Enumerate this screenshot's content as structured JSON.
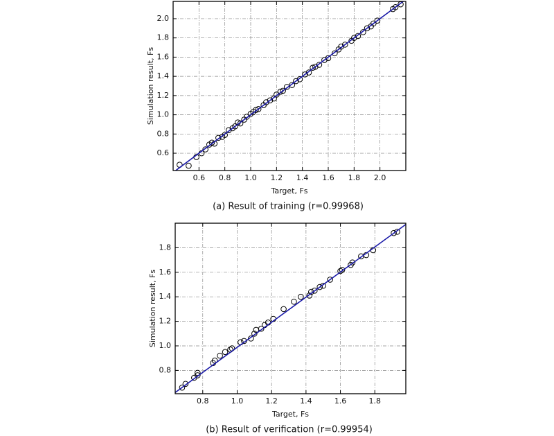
{
  "chart_data": [
    {
      "type": "scatter",
      "caption": "(a) Result of training (r=0.99968)",
      "xlabel": "Target, Fs",
      "ylabel": "Simulation result, Fs",
      "xlim": [
        0.4,
        2.2
      ],
      "ylim": [
        0.42,
        2.18
      ],
      "xticks": [
        0.6,
        0.8,
        {
          "value": 1,
          "label": "1.0"
        },
        1.2,
        1.4,
        1.6,
        1.8,
        {
          "value": 2,
          "label": "2.0"
        }
      ],
      "yticks": [
        0.6,
        0.8,
        {
          "value": 1,
          "label": "1.0"
        },
        1.2,
        1.4,
        1.6,
        1.8,
        {
          "value": 2,
          "label": "2.0"
        }
      ],
      "grid": true,
      "series": [
        {
          "type": "scatter",
          "color": "#000000",
          "x": [
            0.45,
            0.52,
            0.58,
            0.62,
            0.65,
            0.68,
            0.7,
            0.72,
            0.75,
            0.78,
            0.8,
            0.83,
            0.86,
            0.88,
            0.9,
            0.92,
            0.95,
            0.97,
            1.0,
            1.02,
            1.04,
            1.06,
            1.1,
            1.12,
            1.15,
            1.18,
            1.2,
            1.23,
            1.25,
            1.28,
            1.32,
            1.35,
            1.38,
            1.42,
            1.45,
            1.48,
            1.5,
            1.53,
            1.57,
            1.6,
            1.65,
            1.68,
            1.7,
            1.73,
            1.78,
            1.8,
            1.83,
            1.87,
            1.9,
            1.93,
            1.95,
            1.98,
            2.1,
            2.12,
            2.16
          ],
          "values": [
            0.48,
            0.47,
            0.56,
            0.6,
            0.64,
            0.69,
            0.71,
            0.7,
            0.76,
            0.77,
            0.79,
            0.84,
            0.86,
            0.88,
            0.92,
            0.91,
            0.95,
            0.98,
            1.01,
            1.03,
            1.05,
            1.06,
            1.1,
            1.13,
            1.15,
            1.17,
            1.21,
            1.24,
            1.25,
            1.29,
            1.31,
            1.35,
            1.37,
            1.42,
            1.44,
            1.49,
            1.5,
            1.52,
            1.57,
            1.59,
            1.64,
            1.68,
            1.71,
            1.73,
            1.77,
            1.8,
            1.82,
            1.86,
            1.9,
            1.92,
            1.95,
            1.98,
            2.1,
            2.12,
            2.15
          ]
        },
        {
          "type": "line",
          "color": "#1a1aa8",
          "x": [
            0.42,
            2.18
          ],
          "values": [
            0.42,
            2.18
          ]
        }
      ]
    },
    {
      "type": "scatter",
      "caption": "(b) Result of verification (r=0.99954)",
      "xlabel": "Target, Fs",
      "ylabel": "Simulation result, Fs",
      "xlim": [
        0.64,
        1.98
      ],
      "ylim": [
        0.61,
        2.0
      ],
      "xticks": [
        0.8,
        {
          "value": 1,
          "label": "1.0"
        },
        1.2,
        1.4,
        1.6,
        1.8
      ],
      "yticks": [
        0.8,
        {
          "value": 1,
          "label": "1.0"
        },
        1.2,
        1.4,
        1.6,
        1.8
      ],
      "grid": true,
      "series": [
        {
          "type": "scatter",
          "color": "#000000",
          "x": [
            0.68,
            0.7,
            0.75,
            0.77,
            0.77,
            0.86,
            0.87,
            0.9,
            0.93,
            0.96,
            0.97,
            1.02,
            1.04,
            1.08,
            1.1,
            1.11,
            1.14,
            1.16,
            1.18,
            1.21,
            1.27,
            1.33,
            1.37,
            1.42,
            1.43,
            1.45,
            1.48,
            1.5,
            1.54,
            1.6,
            1.61,
            1.66,
            1.67,
            1.72,
            1.75,
            1.79,
            1.91,
            1.93
          ],
          "values": [
            0.66,
            0.69,
            0.74,
            0.76,
            0.78,
            0.86,
            0.88,
            0.92,
            0.95,
            0.97,
            0.98,
            1.03,
            1.04,
            1.06,
            1.1,
            1.13,
            1.14,
            1.17,
            1.19,
            1.22,
            1.3,
            1.36,
            1.4,
            1.41,
            1.44,
            1.45,
            1.48,
            1.49,
            1.54,
            1.61,
            1.62,
            1.66,
            1.68,
            1.73,
            1.74,
            1.78,
            1.92,
            1.93
          ]
        },
        {
          "type": "line",
          "color": "#1a1aa8",
          "x": [
            0.64,
            1.98
          ],
          "values": [
            0.62,
            1.99
          ]
        }
      ]
    }
  ]
}
